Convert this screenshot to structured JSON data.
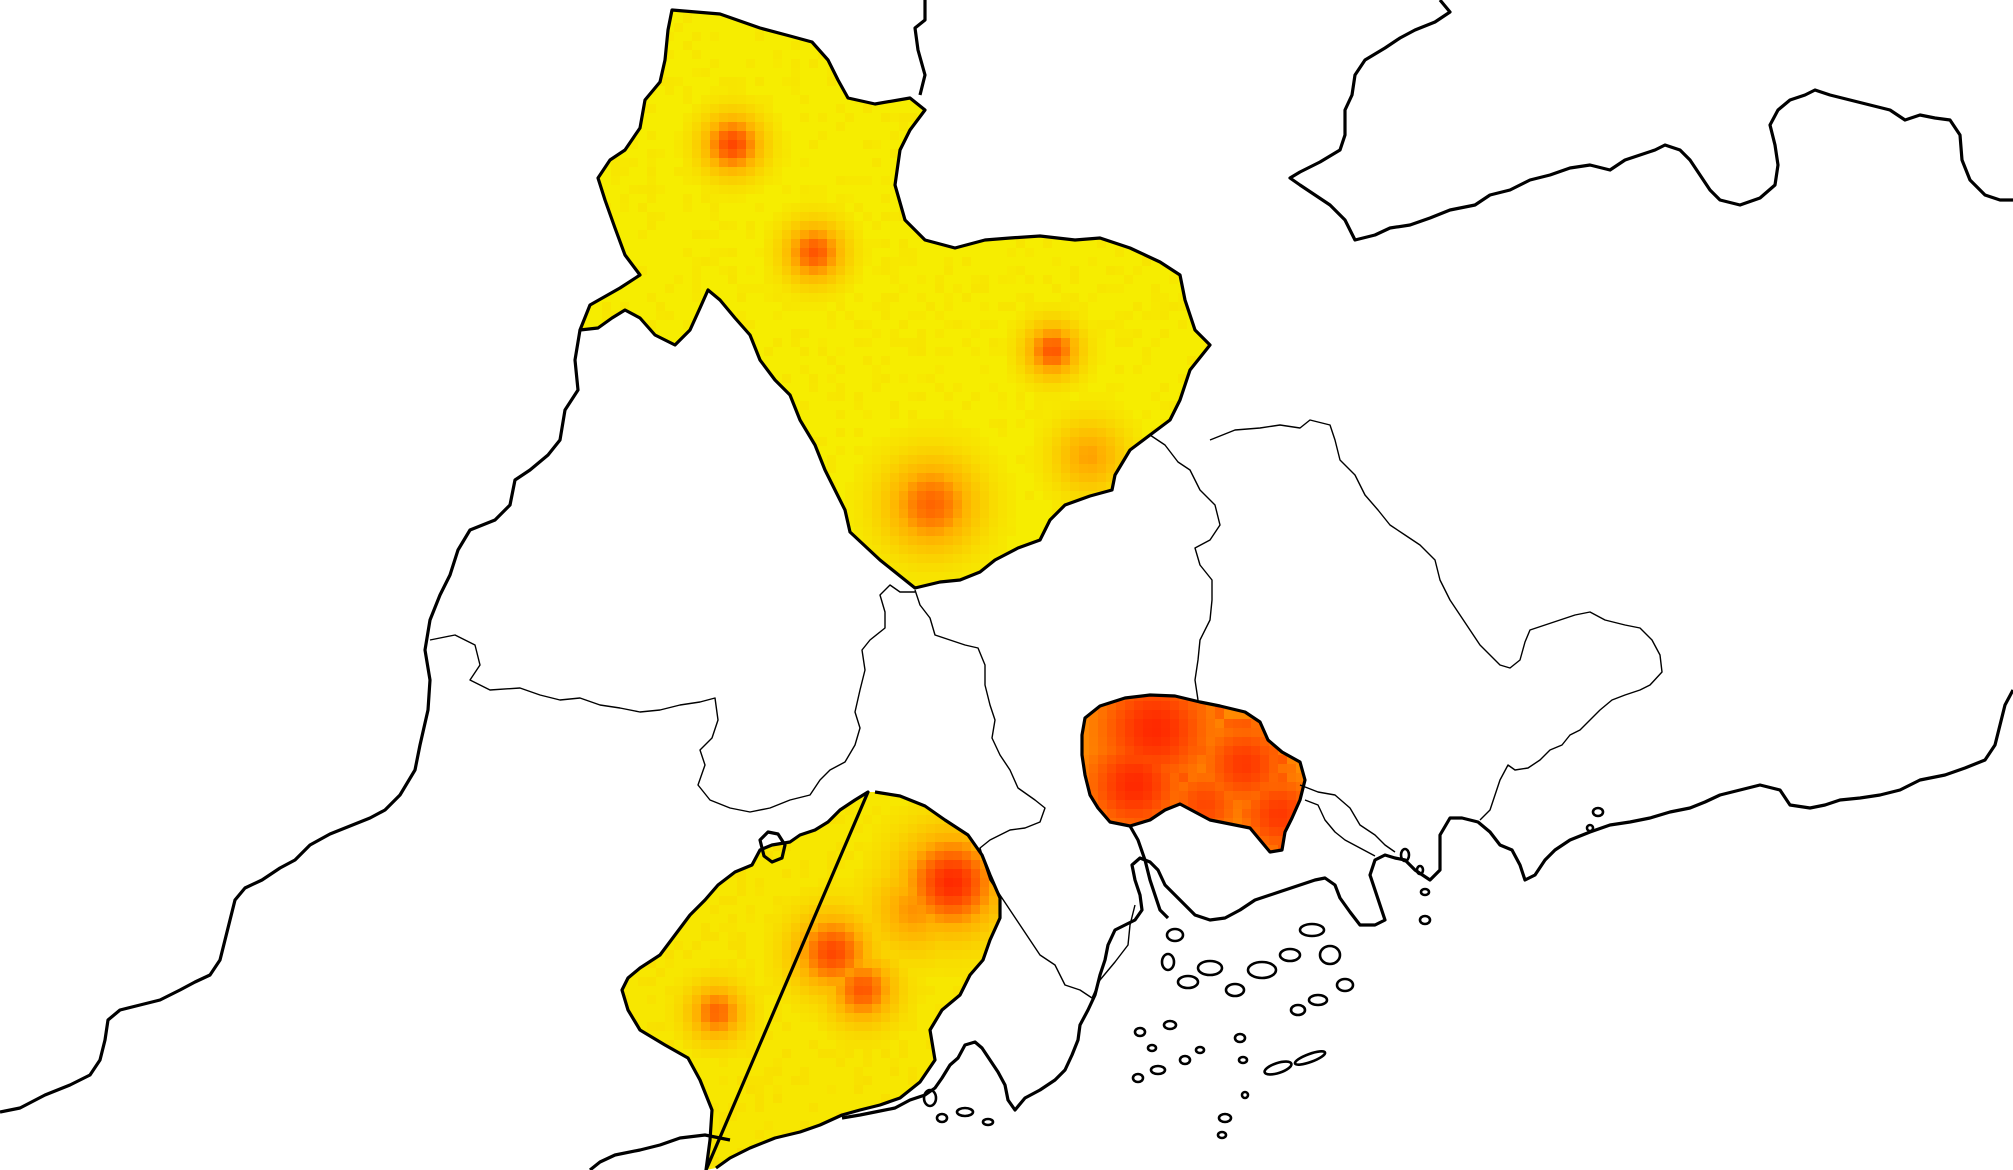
{
  "map": {
    "type": "choropleth-heat",
    "colors": {
      "background": "#ffffff",
      "low": "#f5f500",
      "mid": "#ffb000",
      "high": "#ff1a00",
      "boundary": "#000000"
    },
    "highlighted_regions": [
      {
        "id": "north",
        "base_level": 0.06,
        "hotspots": [
          {
            "level": 0.85
          },
          {
            "level": 0.8
          },
          {
            "level": 0.8
          },
          {
            "level": 0.55
          },
          {
            "level": 0.75
          }
        ]
      },
      {
        "id": "southwest",
        "base_level": 0.1,
        "hotspots": [
          {
            "level": 0.95
          },
          {
            "level": 0.85
          },
          {
            "level": 0.8
          },
          {
            "level": 0.75
          },
          {
            "level": 0.6
          }
        ]
      },
      {
        "id": "central",
        "base_level": 0.55,
        "hotspots": [
          {
            "level": 0.95
          },
          {
            "level": 0.95
          },
          {
            "level": 0.9
          },
          {
            "level": 0.9
          },
          {
            "level": 0.85
          }
        ]
      }
    ]
  }
}
